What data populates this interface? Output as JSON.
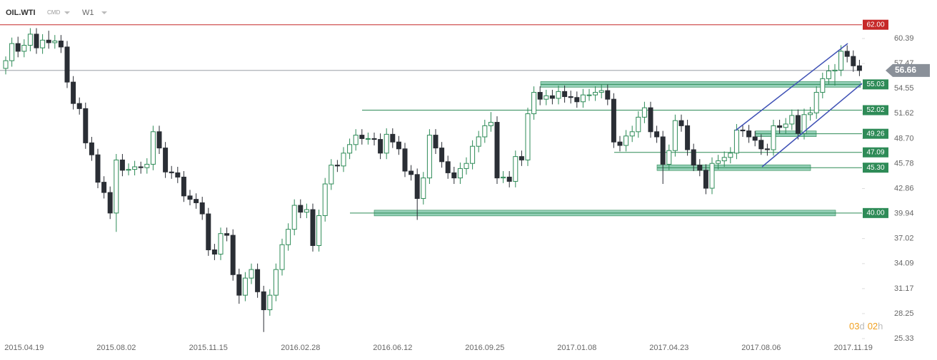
{
  "header": {
    "symbol": "OIL.WTI",
    "market": "CMD",
    "timeframe": "W1"
  },
  "countdown": [
    "03",
    "d",
    "02",
    "h"
  ],
  "chart_data": {
    "type": "candlestick",
    "up_color": "#ffffff",
    "up_border": "#2e8b57",
    "down_color": "#2a2e35",
    "categories": [
      null,
      null,
      null,
      "2015.04.19",
      null,
      null,
      null,
      null,
      null,
      null,
      null,
      null,
      null,
      null,
      null,
      null,
      null,
      null,
      "2015.08.02",
      null,
      null,
      null,
      null,
      null,
      null,
      null,
      null,
      null,
      null,
      null,
      null,
      null,
      null,
      "2015.11.15",
      null,
      null,
      null,
      null,
      null,
      null,
      null,
      null,
      null,
      null,
      null,
      null,
      null,
      null,
      "2016.02.28",
      null,
      null,
      null,
      null,
      null,
      null,
      null,
      null,
      null,
      null,
      null,
      null,
      null,
      null,
      "2016.06.12",
      null,
      null,
      null,
      null,
      null,
      null,
      null,
      null,
      null,
      null,
      null,
      null,
      null,
      null,
      "2016.09.25",
      null,
      null,
      null,
      null,
      null,
      null,
      null,
      null,
      null,
      null,
      null,
      null,
      null,
      null,
      "2017.01.08",
      null,
      null,
      null,
      null,
      null,
      null,
      null,
      null,
      null,
      null,
      null,
      null,
      null,
      null,
      "2017.04.23",
      null,
      null,
      null,
      null,
      null,
      null,
      null,
      null,
      null,
      null,
      null,
      null,
      null,
      null,
      "2017.08.06",
      null,
      null,
      null,
      null,
      null,
      null,
      null,
      null,
      null,
      null,
      null,
      null,
      null,
      null,
      "2017.11.19",
      null
    ],
    "candles": [
      [
        56.9,
        58.3,
        56.2,
        57.8
      ],
      [
        57.8,
        60.5,
        57.1,
        59.8
      ],
      [
        59.8,
        60.6,
        58.2,
        58.9
      ],
      [
        58.9,
        60.3,
        58.2,
        59.6
      ],
      [
        59.6,
        61.6,
        58.9,
        60.9
      ],
      [
        60.9,
        61.6,
        58.6,
        59.3
      ],
      [
        59.3,
        60.9,
        58.6,
        60.2
      ],
      [
        60.2,
        61.3,
        59.2,
        59.9
      ],
      [
        59.9,
        60.8,
        59.2,
        60.1
      ],
      [
        60.1,
        60.8,
        58.7,
        59.4
      ],
      [
        59.4,
        60.1,
        54.6,
        55.3
      ],
      [
        55.3,
        56.0,
        52.1,
        52.8
      ],
      [
        52.8,
        53.5,
        51.5,
        52.2
      ],
      [
        52.2,
        52.9,
        47.5,
        48.2
      ],
      [
        48.2,
        48.9,
        46.1,
        46.8
      ],
      [
        46.8,
        47.5,
        42.9,
        43.6
      ],
      [
        43.6,
        44.3,
        41.7,
        42.4
      ],
      [
        42.4,
        43.1,
        39.3,
        40.0
      ],
      [
        40.0,
        46.9,
        37.8,
        46.2
      ],
      [
        46.2,
        46.9,
        44.3,
        45.0
      ],
      [
        45.0,
        45.8,
        44.4,
        45.1
      ],
      [
        45.1,
        46.1,
        44.4,
        45.4
      ],
      [
        45.4,
        46.0,
        44.6,
        45.3
      ],
      [
        45.3,
        46.4,
        44.6,
        45.7
      ],
      [
        45.7,
        50.2,
        45.0,
        49.5
      ],
      [
        49.5,
        50.2,
        46.9,
        47.6
      ],
      [
        47.6,
        48.3,
        44.1,
        44.8
      ],
      [
        44.8,
        45.5,
        44.0,
        44.7
      ],
      [
        44.7,
        45.4,
        43.5,
        44.2
      ],
      [
        44.2,
        44.9,
        41.3,
        42.0
      ],
      [
        42.0,
        42.7,
        40.9,
        41.6
      ],
      [
        41.6,
        42.3,
        40.5,
        41.2
      ],
      [
        41.2,
        41.9,
        39.2,
        39.9
      ],
      [
        39.9,
        40.6,
        35.0,
        35.7
      ],
      [
        35.7,
        36.4,
        34.5,
        35.2
      ],
      [
        35.2,
        38.3,
        34.5,
        37.6
      ],
      [
        37.6,
        38.3,
        36.7,
        37.4
      ],
      [
        37.4,
        38.1,
        32.1,
        32.8
      ],
      [
        32.8,
        33.5,
        29.4,
        30.4
      ],
      [
        30.4,
        33.1,
        29.7,
        32.4
      ],
      [
        32.4,
        34.1,
        31.7,
        33.4
      ],
      [
        33.4,
        34.1,
        30.1,
        30.8
      ],
      [
        30.8,
        31.5,
        26.1,
        28.7
      ],
      [
        28.7,
        31.1,
        28.0,
        30.4
      ],
      [
        30.4,
        34.1,
        29.7,
        33.4
      ],
      [
        33.4,
        37.0,
        32.7,
        36.3
      ],
      [
        36.3,
        38.8,
        35.6,
        38.1
      ],
      [
        38.1,
        41.6,
        37.4,
        40.9
      ],
      [
        40.9,
        41.6,
        39.4,
        40.1
      ],
      [
        40.1,
        41.1,
        39.4,
        40.4
      ],
      [
        40.4,
        41.1,
        35.5,
        36.2
      ],
      [
        36.2,
        40.4,
        35.5,
        39.7
      ],
      [
        39.7,
        44.1,
        39.0,
        43.4
      ],
      [
        43.4,
        46.3,
        42.7,
        45.6
      ],
      [
        45.6,
        46.2,
        44.8,
        45.5
      ],
      [
        45.5,
        47.7,
        44.8,
        47.0
      ],
      [
        47.0,
        48.7,
        46.3,
        48.0
      ],
      [
        48.0,
        49.8,
        47.3,
        49.1
      ],
      [
        49.1,
        49.8,
        48.0,
        48.7
      ],
      [
        48.7,
        49.4,
        48.0,
        48.7
      ],
      [
        48.7,
        49.4,
        47.9,
        48.6
      ],
      [
        48.6,
        49.3,
        46.3,
        47.0
      ],
      [
        47.0,
        49.9,
        46.3,
        49.2
      ],
      [
        49.2,
        49.9,
        47.6,
        48.3
      ],
      [
        48.3,
        49.0,
        46.8,
        47.5
      ],
      [
        47.5,
        48.2,
        44.2,
        44.9
      ],
      [
        44.9,
        45.6,
        43.8,
        44.5
      ],
      [
        44.5,
        45.2,
        39.2,
        41.7
      ],
      [
        41.7,
        44.8,
        41.0,
        44.1
      ],
      [
        44.1,
        49.8,
        43.4,
        49.1
      ],
      [
        49.1,
        49.8,
        46.9,
        47.6
      ],
      [
        47.6,
        48.3,
        45.3,
        46.0
      ],
      [
        46.0,
        46.7,
        44.0,
        44.7
      ],
      [
        44.7,
        45.4,
        43.4,
        44.1
      ],
      [
        44.1,
        45.9,
        43.4,
        45.2
      ],
      [
        45.2,
        46.5,
        44.5,
        45.8
      ],
      [
        45.8,
        48.5,
        45.1,
        47.8
      ],
      [
        47.8,
        49.6,
        47.1,
        48.9
      ],
      [
        48.9,
        50.9,
        48.2,
        50.2
      ],
      [
        50.2,
        51.8,
        49.5,
        50.6
      ],
      [
        50.6,
        51.3,
        43.4,
        44.1
      ],
      [
        44.1,
        44.9,
        43.5,
        44.2
      ],
      [
        44.2,
        44.9,
        43.0,
        43.7
      ],
      [
        43.7,
        47.3,
        43.0,
        46.6
      ],
      [
        46.6,
        47.3,
        45.5,
        46.2
      ],
      [
        46.2,
        52.3,
        45.5,
        51.6
      ],
      [
        51.6,
        54.8,
        50.9,
        54.1
      ],
      [
        54.1,
        54.8,
        52.6,
        53.3
      ],
      [
        53.3,
        54.4,
        52.6,
        53.7
      ],
      [
        53.7,
        54.4,
        52.7,
        53.4
      ],
      [
        53.4,
        54.9,
        52.7,
        54.2
      ],
      [
        54.2,
        54.9,
        52.9,
        53.6
      ],
      [
        53.6,
        54.3,
        52.8,
        53.5
      ],
      [
        53.5,
        54.2,
        52.3,
        53.0
      ],
      [
        53.0,
        54.5,
        52.3,
        53.8
      ],
      [
        53.8,
        54.5,
        53.1,
        53.8
      ],
      [
        53.8,
        54.8,
        53.1,
        54.1
      ],
      [
        54.1,
        55.0,
        53.4,
        54.3
      ],
      [
        54.3,
        55.0,
        52.6,
        53.3
      ],
      [
        53.3,
        54.0,
        47.6,
        48.3
      ],
      [
        48.3,
        49.0,
        47.2,
        47.9
      ],
      [
        47.9,
        49.7,
        47.2,
        49.0
      ],
      [
        49.0,
        50.2,
        48.3,
        49.5
      ],
      [
        49.5,
        51.9,
        48.8,
        51.2
      ],
      [
        51.2,
        53.0,
        50.5,
        52.3
      ],
      [
        52.3,
        53.0,
        48.8,
        49.5
      ],
      [
        49.5,
        50.2,
        48.2,
        48.9
      ],
      [
        48.9,
        49.6,
        43.4,
        45.7
      ],
      [
        45.7,
        48.0,
        45.0,
        47.3
      ],
      [
        47.3,
        51.5,
        46.6,
        50.8
      ],
      [
        50.8,
        51.5,
        49.5,
        50.2
      ],
      [
        50.2,
        50.9,
        46.7,
        47.4
      ],
      [
        47.4,
        48.1,
        44.9,
        45.6
      ],
      [
        45.6,
        46.3,
        44.3,
        45.0
      ],
      [
        45.0,
        45.7,
        42.2,
        42.9
      ],
      [
        42.9,
        46.5,
        42.2,
        45.8
      ],
      [
        45.8,
        46.8,
        45.1,
        46.1
      ],
      [
        46.1,
        47.2,
        45.4,
        46.5
      ],
      [
        46.5,
        47.7,
        45.8,
        47.0
      ],
      [
        47.0,
        50.4,
        46.3,
        49.7
      ],
      [
        49.7,
        50.3,
        48.9,
        49.6
      ],
      [
        49.6,
        50.3,
        48.2,
        48.9
      ],
      [
        48.9,
        49.6,
        47.8,
        48.5
      ],
      [
        48.5,
        49.2,
        46.8,
        47.5
      ],
      [
        47.5,
        48.1,
        46.7,
        47.4
      ],
      [
        47.4,
        50.9,
        46.7,
        50.2
      ],
      [
        50.2,
        50.9,
        49.3,
        50.0
      ],
      [
        50.0,
        51.1,
        49.3,
        50.4
      ],
      [
        50.4,
        52.1,
        49.7,
        51.4
      ],
      [
        51.4,
        52.1,
        48.6,
        49.3
      ],
      [
        49.3,
        52.2,
        48.6,
        51.5
      ],
      [
        51.5,
        52.4,
        50.8,
        51.7
      ],
      [
        51.7,
        54.8,
        51.0,
        54.1
      ],
      [
        54.1,
        56.4,
        53.4,
        55.7
      ],
      [
        55.7,
        57.3,
        55.0,
        56.6
      ],
      [
        56.6,
        57.4,
        54.9,
        56.7
      ],
      [
        56.7,
        59.6,
        56.0,
        58.9
      ],
      [
        58.9,
        59.6,
        57.6,
        58.3
      ],
      [
        58.3,
        59.0,
        56.5,
        57.2
      ],
      [
        57.2,
        57.9,
        56.0,
        56.66
      ]
    ],
    "ylim": [
      24.08,
      64.89
    ],
    "yticks": [
      60.39,
      57.47,
      54.55,
      51.62,
      {
        "value": 48.7,
        "label": "48.70"
      },
      45.78,
      42.86,
      39.94,
      37.02,
      34.09,
      31.17,
      28.25,
      25.33
    ],
    "last_price": {
      "value": 56.66,
      "color": "#8a9099"
    },
    "levels": [
      {
        "value": {
          "value": 62,
          "label": "62.00"
        },
        "color": "#c62828"
      },
      {
        "value": 55.03,
        "color": "#2e8b57"
      },
      {
        "value": 52.02,
        "color": "#2e8b57"
      },
      {
        "value": 49.26,
        "color": "#2e8b57"
      },
      {
        "value": 47.09,
        "color": "#2e8b57"
      },
      {
        "value": {
          "value": 45.3,
          "label": "45.30"
        },
        "color": "#2e8b57"
      },
      {
        "value": {
          "value": 40,
          "label": "40.00"
        },
        "color": "#2e8b57"
      }
    ]
  }
}
